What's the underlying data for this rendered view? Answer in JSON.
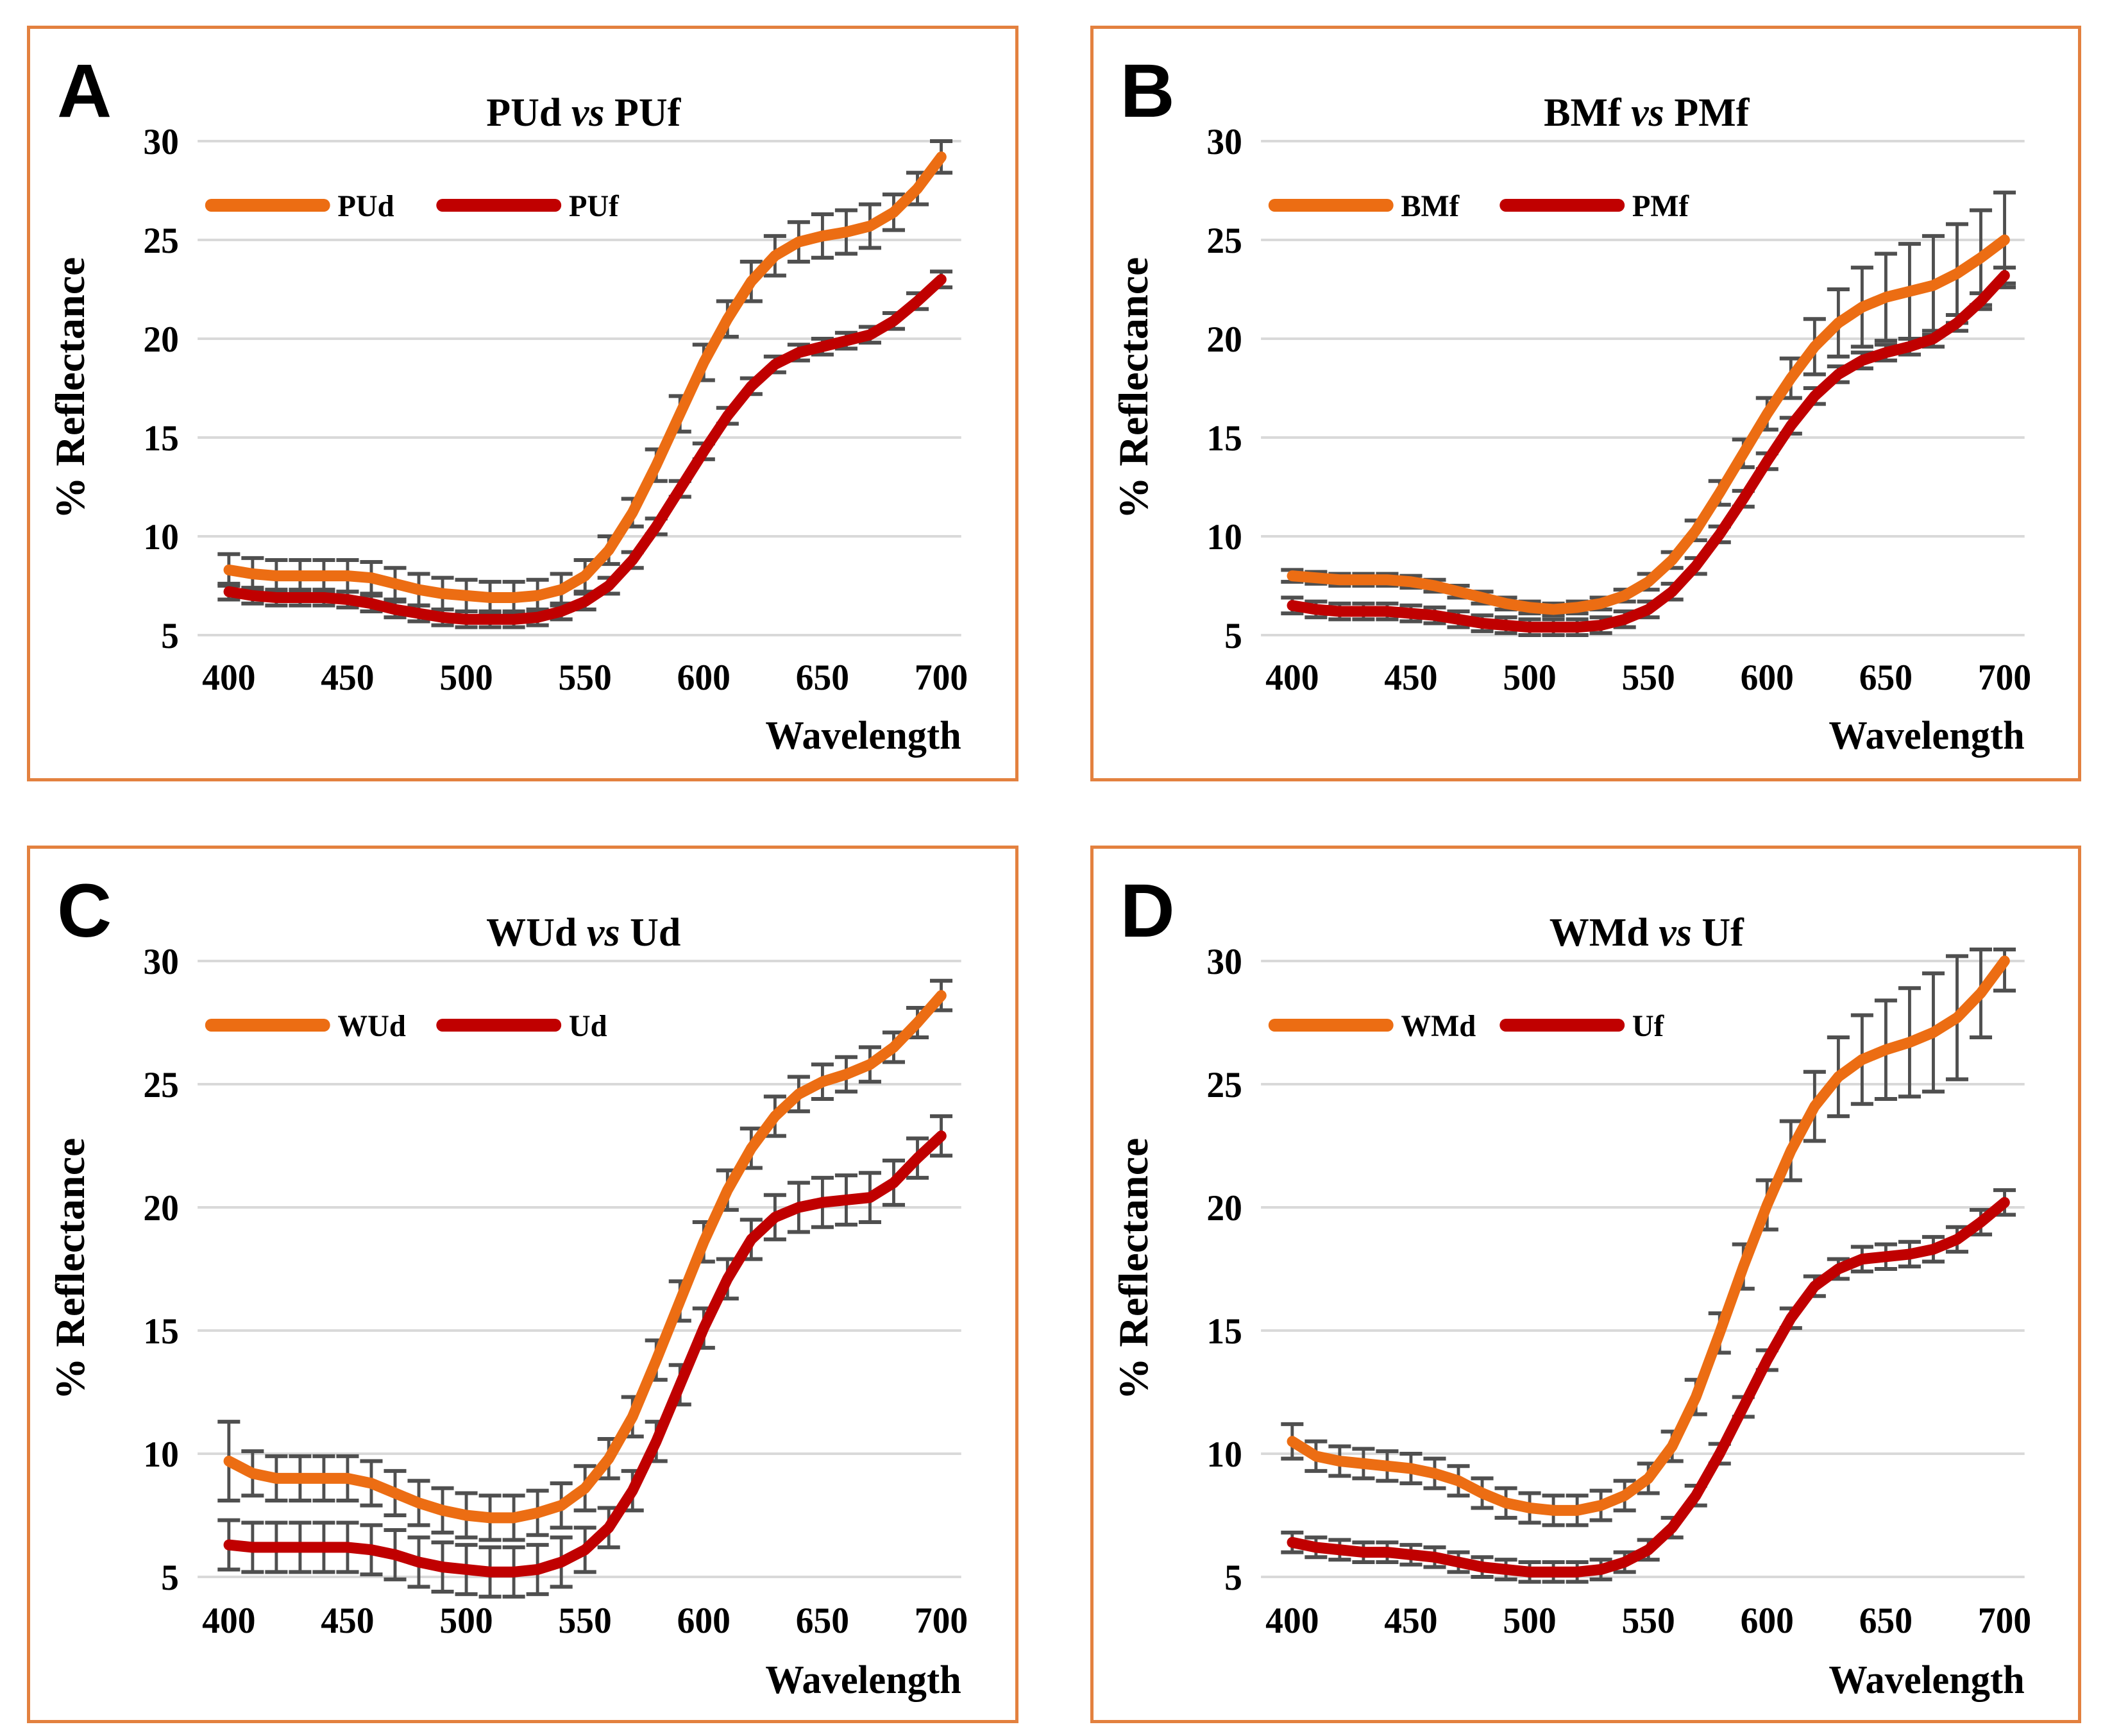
{
  "colors": {
    "orange": "#EC6D13",
    "red": "#C00000",
    "error_bar": "#4F4F4F",
    "gridline": "#D9D9D9",
    "panel_border": "#E3813F",
    "text": "#000000"
  },
  "chart_data": [
    {
      "type": "line",
      "panel_letter": "A",
      "title": {
        "left": "PUd",
        "vs": "vs",
        "right": "PUf",
        "full": "PUd vs PUf"
      },
      "xlabel": "Wavelength",
      "ylabel": "% Reflectance",
      "x_start": 400,
      "x_step": 10,
      "x_range": [
        400,
        700
      ],
      "x_ticks": [
        400,
        450,
        500,
        550,
        600,
        650,
        700
      ],
      "y_ticks": [
        5,
        10,
        15,
        20,
        25,
        30
      ],
      "ylim": [
        5,
        30
      ],
      "grid": true,
      "legend_position": "top-left-inside",
      "series": [
        {
          "name": "PUd",
          "color_key": "orange",
          "values": [
            8.3,
            8.1,
            8.0,
            8.0,
            8.0,
            8.0,
            7.9,
            7.6,
            7.3,
            7.1,
            7.0,
            6.9,
            6.9,
            7.0,
            7.3,
            8.0,
            9.3,
            11.2,
            13.6,
            16.2,
            18.8,
            21.0,
            22.9,
            24.2,
            24.9,
            25.2,
            25.4,
            25.7,
            26.4,
            27.6,
            29.2
          ],
          "err": [
            0.8,
            0.8,
            0.8,
            0.8,
            0.8,
            0.8,
            0.8,
            0.8,
            0.8,
            0.8,
            0.8,
            0.8,
            0.8,
            0.8,
            0.8,
            0.8,
            0.7,
            0.7,
            0.8,
            0.9,
            0.9,
            0.9,
            1.0,
            1.0,
            1.0,
            1.1,
            1.1,
            1.1,
            0.9,
            0.8,
            0.8
          ]
        },
        {
          "name": "PUf",
          "color_key": "red",
          "values": [
            7.2,
            7.0,
            6.9,
            6.9,
            6.9,
            6.8,
            6.6,
            6.3,
            6.1,
            5.9,
            5.8,
            5.8,
            5.8,
            5.9,
            6.2,
            6.7,
            7.5,
            8.8,
            10.5,
            12.4,
            14.3,
            16.1,
            17.6,
            18.7,
            19.3,
            19.6,
            19.9,
            20.2,
            20.9,
            21.9,
            23.0
          ],
          "err": [
            0.4,
            0.4,
            0.4,
            0.4,
            0.4,
            0.4,
            0.4,
            0.4,
            0.4,
            0.4,
            0.4,
            0.4,
            0.4,
            0.4,
            0.4,
            0.4,
            0.4,
            0.4,
            0.4,
            0.4,
            0.4,
            0.4,
            0.4,
            0.4,
            0.4,
            0.4,
            0.4,
            0.4,
            0.4,
            0.4,
            0.4
          ]
        }
      ]
    },
    {
      "type": "line",
      "panel_letter": "B",
      "title": {
        "left": "BMf",
        "vs": "vs",
        "right": "PMf",
        "full": "BMf vs PMf"
      },
      "xlabel": "Wavelength",
      "ylabel": "% Reflectance",
      "x_start": 400,
      "x_step": 10,
      "x_range": [
        400,
        700
      ],
      "x_ticks": [
        400,
        450,
        500,
        550,
        600,
        650,
        700
      ],
      "y_ticks": [
        5,
        10,
        15,
        20,
        25,
        30
      ],
      "ylim": [
        5,
        30
      ],
      "grid": true,
      "legend_position": "top-left-inside",
      "series": [
        {
          "name": "BMf",
          "color_key": "orange",
          "values": [
            8.0,
            7.9,
            7.8,
            7.8,
            7.8,
            7.7,
            7.5,
            7.2,
            6.9,
            6.6,
            6.4,
            6.3,
            6.4,
            6.6,
            7.0,
            7.7,
            8.8,
            10.3,
            12.2,
            14.2,
            16.2,
            18.0,
            19.6,
            20.8,
            21.6,
            22.1,
            22.4,
            22.7,
            23.3,
            24.1,
            25.0
          ],
          "err": [
            0.3,
            0.3,
            0.3,
            0.3,
            0.3,
            0.3,
            0.3,
            0.3,
            0.3,
            0.3,
            0.3,
            0.3,
            0.3,
            0.3,
            0.3,
            0.4,
            0.4,
            0.5,
            0.6,
            0.7,
            0.8,
            1.0,
            1.4,
            1.7,
            2.0,
            2.2,
            2.4,
            2.5,
            2.5,
            2.4,
            2.4
          ]
        },
        {
          "name": "PMf",
          "color_key": "red",
          "values": [
            6.5,
            6.3,
            6.2,
            6.2,
            6.2,
            6.1,
            6.0,
            5.8,
            5.6,
            5.5,
            5.4,
            5.4,
            5.4,
            5.5,
            5.8,
            6.3,
            7.2,
            8.5,
            10.1,
            11.9,
            13.8,
            15.6,
            17.1,
            18.2,
            18.9,
            19.3,
            19.6,
            20.0,
            20.8,
            21.9,
            23.2
          ],
          "err": [
            0.4,
            0.4,
            0.4,
            0.4,
            0.4,
            0.4,
            0.4,
            0.4,
            0.4,
            0.4,
            0.4,
            0.4,
            0.4,
            0.4,
            0.4,
            0.4,
            0.4,
            0.4,
            0.4,
            0.4,
            0.4,
            0.4,
            0.4,
            0.4,
            0.4,
            0.4,
            0.4,
            0.4,
            0.4,
            0.4,
            0.4
          ]
        }
      ]
    },
    {
      "type": "line",
      "panel_letter": "C",
      "title": {
        "left": "WUd",
        "vs": "vs",
        "right": "Ud",
        "full": "WUd vs Ud"
      },
      "xlabel": "Wavelength",
      "ylabel": "% Reflectance",
      "x_start": 400,
      "x_step": 10,
      "x_range": [
        400,
        700
      ],
      "x_ticks": [
        400,
        450,
        500,
        550,
        600,
        650,
        700
      ],
      "y_ticks": [
        5,
        10,
        15,
        20,
        25,
        30
      ],
      "ylim": [
        5,
        30
      ],
      "grid": true,
      "legend_position": "top-left-inside",
      "series": [
        {
          "name": "WUd",
          "color_key": "orange",
          "values": [
            9.7,
            9.2,
            9.0,
            9.0,
            9.0,
            9.0,
            8.8,
            8.4,
            8.0,
            7.7,
            7.5,
            7.4,
            7.4,
            7.6,
            7.9,
            8.6,
            9.8,
            11.5,
            13.8,
            16.2,
            18.6,
            20.7,
            22.4,
            23.7,
            24.6,
            25.1,
            25.4,
            25.8,
            26.5,
            27.5,
            28.6
          ],
          "err": [
            1.6,
            0.9,
            0.9,
            0.9,
            0.9,
            0.9,
            0.9,
            0.9,
            0.9,
            0.9,
            0.9,
            0.9,
            0.9,
            0.9,
            0.9,
            0.9,
            0.8,
            0.8,
            0.8,
            0.8,
            0.8,
            0.8,
            0.8,
            0.8,
            0.7,
            0.7,
            0.7,
            0.7,
            0.6,
            0.6,
            0.6
          ]
        },
        {
          "name": "Ud",
          "color_key": "red",
          "values": [
            6.3,
            6.2,
            6.2,
            6.2,
            6.2,
            6.2,
            6.1,
            5.9,
            5.6,
            5.4,
            5.3,
            5.2,
            5.2,
            5.3,
            5.6,
            6.1,
            7.0,
            8.5,
            10.5,
            12.8,
            15.1,
            17.1,
            18.7,
            19.6,
            20.0,
            20.2,
            20.3,
            20.4,
            21.0,
            22.0,
            22.9
          ],
          "err": [
            1.0,
            1.0,
            1.0,
            1.0,
            1.0,
            1.0,
            1.0,
            1.0,
            1.0,
            1.0,
            1.0,
            1.0,
            1.0,
            1.0,
            1.0,
            0.9,
            0.8,
            0.8,
            0.8,
            0.8,
            0.8,
            0.8,
            0.8,
            0.9,
            1.0,
            1.0,
            1.0,
            1.0,
            0.9,
            0.8,
            0.8
          ]
        }
      ]
    },
    {
      "type": "line",
      "panel_letter": "D",
      "title": {
        "left": "WMd",
        "vs": "vs",
        "right": "Uf",
        "full": "WMd vs Uf"
      },
      "xlabel": "Wavelength",
      "ylabel": "% Reflectance",
      "x_start": 400,
      "x_step": 10,
      "x_range": [
        400,
        700
      ],
      "x_ticks": [
        400,
        450,
        500,
        550,
        600,
        650,
        700
      ],
      "y_ticks": [
        5,
        10,
        15,
        20,
        25,
        30
      ],
      "ylim": [
        5,
        30
      ],
      "grid": true,
      "legend_position": "top-left-inside",
      "series": [
        {
          "name": "WMd",
          "color_key": "orange",
          "values": [
            10.5,
            9.9,
            9.7,
            9.6,
            9.5,
            9.4,
            9.2,
            8.9,
            8.4,
            8.0,
            7.8,
            7.7,
            7.7,
            7.9,
            8.3,
            9.0,
            10.3,
            12.3,
            14.9,
            17.6,
            20.1,
            22.3,
            24.1,
            25.3,
            26.0,
            26.4,
            26.7,
            27.1,
            27.7,
            28.7,
            30.0
          ],
          "err": [
            0.7,
            0.6,
            0.6,
            0.6,
            0.6,
            0.6,
            0.6,
            0.6,
            0.6,
            0.6,
            0.6,
            0.6,
            0.6,
            0.6,
            0.6,
            0.6,
            0.6,
            0.7,
            0.8,
            0.9,
            1.0,
            1.2,
            1.4,
            1.6,
            1.8,
            2.0,
            2.2,
            2.4,
            2.5,
            1.8,
            1.2
          ]
        },
        {
          "name": "Uf",
          "color_key": "red",
          "values": [
            6.4,
            6.2,
            6.1,
            6.0,
            6.0,
            5.9,
            5.8,
            5.6,
            5.4,
            5.3,
            5.2,
            5.2,
            5.2,
            5.3,
            5.6,
            6.1,
            7.0,
            8.3,
            10.0,
            11.9,
            13.8,
            15.5,
            16.8,
            17.5,
            17.9,
            18.0,
            18.1,
            18.3,
            18.7,
            19.4,
            20.2
          ],
          "err": [
            0.4,
            0.4,
            0.4,
            0.4,
            0.4,
            0.4,
            0.4,
            0.4,
            0.4,
            0.4,
            0.4,
            0.4,
            0.4,
            0.4,
            0.4,
            0.4,
            0.4,
            0.4,
            0.4,
            0.4,
            0.4,
            0.4,
            0.4,
            0.4,
            0.5,
            0.5,
            0.5,
            0.5,
            0.5,
            0.5,
            0.5
          ]
        }
      ]
    }
  ]
}
